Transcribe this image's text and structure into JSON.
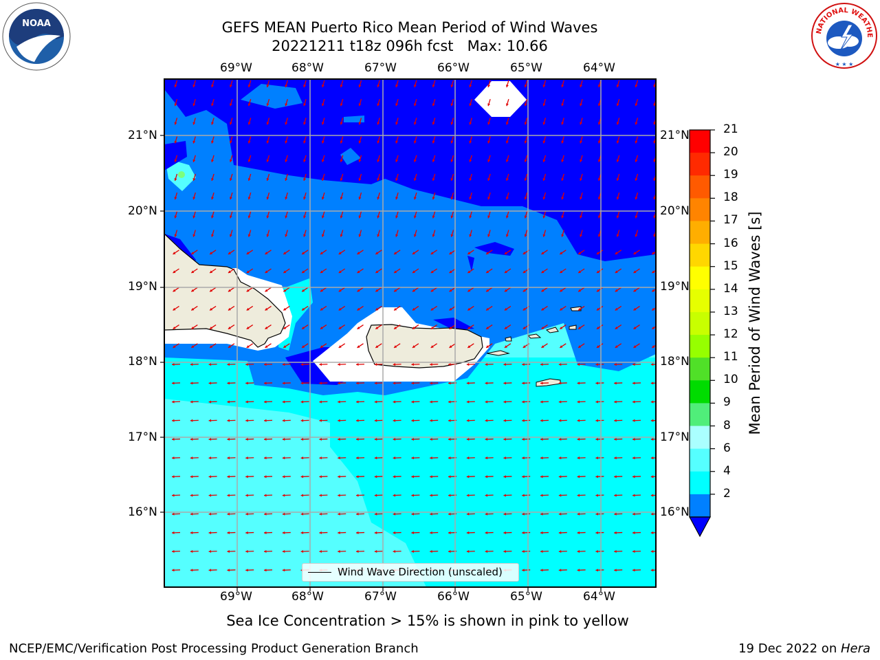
{
  "title_line1": "GEFS MEAN Puerto Rico Mean Period of Wind Waves",
  "title_line2": "20221211 t18z 096h fcst   Max: 10.66",
  "lon_labels": [
    "69°W",
    "68°W",
    "67°W",
    "66°W",
    "65°W",
    "64°W"
  ],
  "lat_labels": [
    "21°N",
    "20°N",
    "19°N",
    "18°N",
    "17°N",
    "16°N"
  ],
  "legend_label": "Wind Wave Direction (unscaled)",
  "colorbar": {
    "label": "Mean Period of Wind Waves [s]",
    "ticks": [
      "21",
      "20",
      "19",
      "18",
      "17",
      "16",
      "15",
      "14",
      "13",
      "12",
      "11",
      "10",
      "9",
      "8",
      "6",
      "4",
      "2"
    ],
    "colors": [
      "#ff0000",
      "#ff2a00",
      "#ff5a00",
      "#ff8400",
      "#ffae00",
      "#ffd700",
      "#ffff00",
      "#e6ff00",
      "#c8ff00",
      "#96ff00",
      "#50e028",
      "#00dc00",
      "#50ee7a",
      "#aaffff",
      "#55ffff",
      "#00ffff",
      "#0080ff"
    ],
    "under_color": "#0000ff"
  },
  "sea_ice_note": "Sea Ice Concentration > 15% is shown in pink to yellow",
  "footer_left": "NCEP/EMC/Verification Post Processing Product Generation Branch",
  "footer_right_prefix": "19 Dec 2022 on ",
  "footer_right_host": "Hera",
  "logos": {
    "left": "NOAA",
    "right_text": "NATIONAL WEATHER SERVICE"
  }
}
